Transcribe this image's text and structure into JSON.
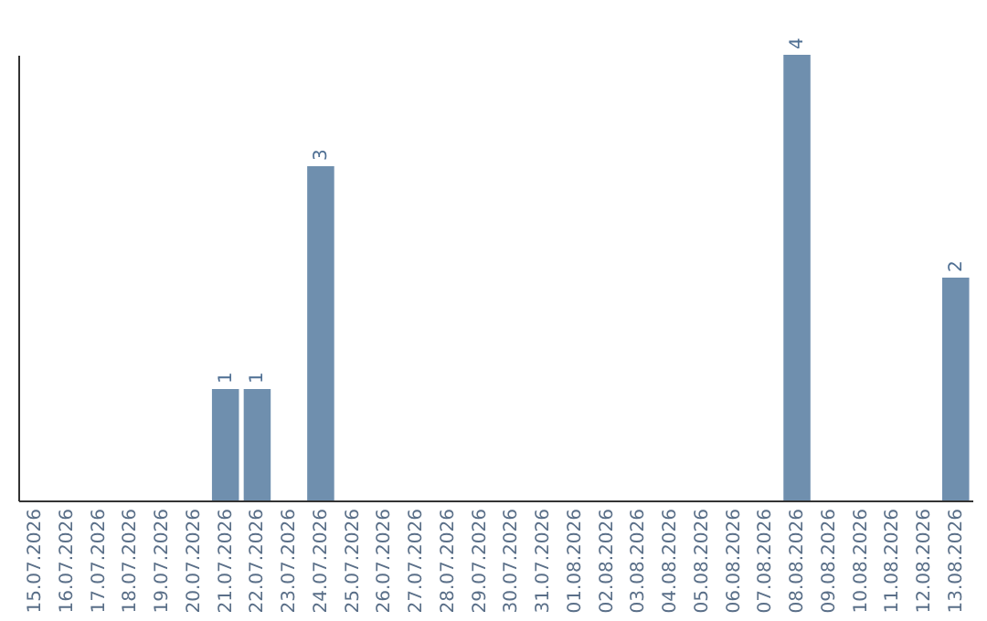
{
  "chart_data": {
    "type": "bar",
    "categories": [
      "15.07.2026",
      "16.07.2026",
      "17.07.2026",
      "18.07.2026",
      "19.07.2026",
      "20.07.2026",
      "21.07.2026",
      "22.07.2026",
      "23.07.2026",
      "24.07.2026",
      "25.07.2026",
      "26.07.2026",
      "27.07.2026",
      "28.07.2026",
      "29.07.2026",
      "30.07.2026",
      "31.07.2026",
      "01.08.2026",
      "02.08.2026",
      "03.08.2026",
      "04.08.2026",
      "05.08.2026",
      "06.08.2026",
      "07.08.2026",
      "08.08.2026",
      "09.08.2026",
      "10.08.2026",
      "11.08.2026",
      "12.08.2026",
      "13.08.2026"
    ],
    "values": [
      0,
      0,
      0,
      0,
      0,
      0,
      1,
      1,
      0,
      3,
      0,
      0,
      0,
      0,
      0,
      0,
      0,
      0,
      0,
      0,
      0,
      0,
      0,
      0,
      4,
      0,
      0,
      0,
      0,
      2
    ],
    "value_labels": [
      null,
      null,
      null,
      null,
      null,
      null,
      "1",
      "1",
      null,
      "3",
      null,
      null,
      null,
      null,
      null,
      null,
      null,
      null,
      null,
      null,
      null,
      null,
      null,
      null,
      "4",
      null,
      null,
      null,
      null,
      "2"
    ],
    "color": "#6f8fae",
    "grid": false,
    "tick_labels": "x"
  }
}
